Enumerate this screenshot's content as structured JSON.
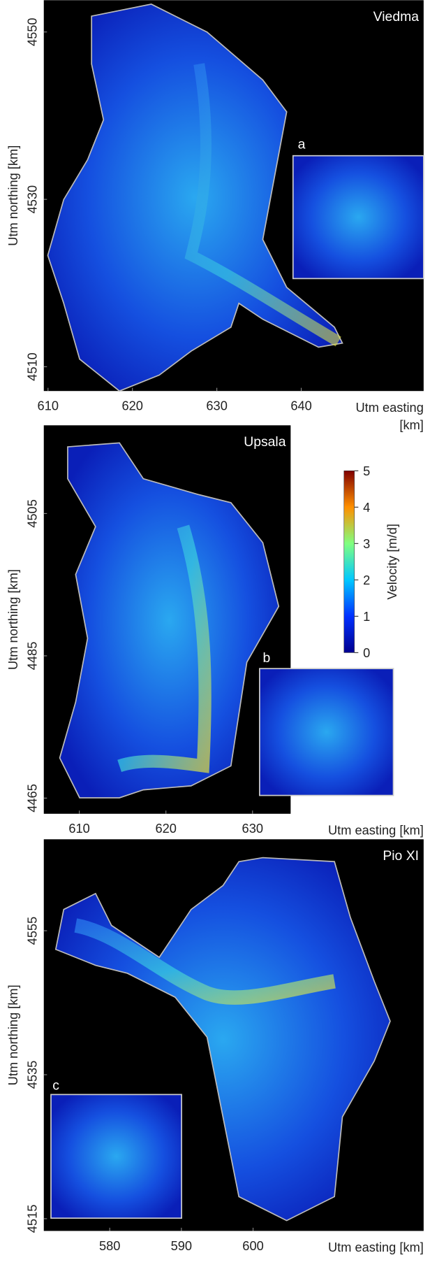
{
  "panels": [
    {
      "title": "Viedma",
      "inset_label": "a",
      "xlabel": [
        "Utm easting",
        "[km]"
      ],
      "ylabel": "Utm northing [km]",
      "xlim": [
        609.5,
        654.5
      ],
      "ylim": [
        4507.1,
        4553.8
      ],
      "xticks": [
        610,
        620,
        630,
        640
      ],
      "yticks": [
        4510,
        4530,
        4550
      ]
    },
    {
      "title": "Upsala",
      "inset_label": "b",
      "xlabel": [
        "Utm easting [km]"
      ],
      "ylabel": "Utm northing [km]",
      "xlim": [
        605.9,
        634.4
      ],
      "ylim": [
        4462.8,
        4517.4
      ],
      "xticks": [
        610,
        620,
        630
      ],
      "yticks": [
        4465,
        4485,
        4505
      ]
    },
    {
      "title": "Pio XI",
      "inset_label": "c",
      "xlabel": [
        "Utm easting [km]"
      ],
      "ylabel": "Utm northing [km]",
      "xlim": [
        570.8,
        623.8
      ],
      "ylim": [
        4513.3,
        4567.7
      ],
      "xticks": [
        580,
        590,
        600
      ],
      "yticks": [
        4515,
        4535,
        4555
      ]
    }
  ],
  "colorbar": {
    "label": "Velocity [m/d]",
    "clim": [
      0,
      5
    ],
    "ticks": [
      0,
      1,
      2,
      3,
      4,
      5
    ]
  }
}
